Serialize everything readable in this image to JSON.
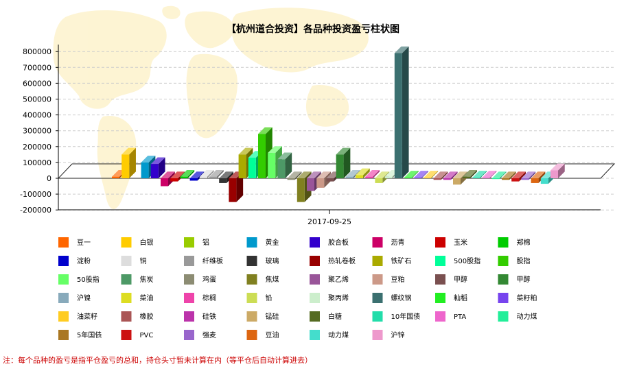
{
  "chart_data": {
    "type": "bar",
    "title": "【杭州道合投资】各品种投资盈亏柱状图",
    "xlabel": "",
    "ylabel": "",
    "categories": [
      "2017-09-25"
    ],
    "ylim": [
      -200000,
      800000
    ],
    "yticks": [
      800000,
      700000,
      600000,
      500000,
      400000,
      300000,
      200000,
      100000,
      0,
      -100000,
      -200000
    ],
    "grid": true,
    "legend_position": "bottom",
    "series": [
      {
        "name": "豆一",
        "color": "#ff6600",
        "values": [
          10000
        ]
      },
      {
        "name": "白银",
        "color": "#ffcc00",
        "values": [
          150000
        ]
      },
      {
        "name": "铝",
        "color": "#99cc00",
        "values": [
          0
        ]
      },
      {
        "name": "黄金",
        "color": "#0099cc",
        "values": [
          100000
        ]
      },
      {
        "name": "胶合板",
        "color": "#3300cc",
        "values": [
          90000
        ]
      },
      {
        "name": "沥青",
        "color": "#cc0066",
        "values": [
          -50000
        ]
      },
      {
        "name": "玉米",
        "color": "#cc0000",
        "values": [
          -20000
        ]
      },
      {
        "name": "郑棉",
        "color": "#00cc00",
        "values": [
          10000
        ]
      },
      {
        "name": "淀粉",
        "color": "#0000cc",
        "values": [
          -15000
        ]
      },
      {
        "name": "铜",
        "color": "#dddddd",
        "values": [
          10000
        ]
      },
      {
        "name": "纤维板",
        "color": "#999999",
        "values": [
          10000
        ]
      },
      {
        "name": "玻璃",
        "color": "#333333",
        "values": [
          -30000
        ]
      },
      {
        "name": "热轧卷板",
        "color": "#990000",
        "values": [
          -150000
        ]
      },
      {
        "name": "铁矿石",
        "color": "#aaaa00",
        "values": [
          150000
        ]
      },
      {
        "name": "500股指",
        "color": "#00ff99",
        "values": [
          130000
        ]
      },
      {
        "name": "股指",
        "color": "#33cc00",
        "values": [
          280000
        ]
      },
      {
        "name": "50股指",
        "color": "#66ff66",
        "values": [
          160000
        ]
      },
      {
        "name": "焦炭",
        "color": "#4d9966",
        "values": [
          120000
        ]
      },
      {
        "name": "鸡蛋",
        "color": "#8c8c73",
        "values": [
          -10000
        ]
      },
      {
        "name": "焦煤",
        "color": "#808020",
        "values": [
          -150000
        ]
      },
      {
        "name": "聚乙烯",
        "color": "#995599",
        "values": [
          -80000
        ]
      },
      {
        "name": "豆粕",
        "color": "#cc9988",
        "values": [
          -60000
        ]
      },
      {
        "name": "甲醇",
        "color": "#7a5050",
        "values": [
          -20000
        ]
      },
      {
        "name": "甲醇",
        "color": "#338833",
        "values": [
          150000
        ]
      },
      {
        "name": "沪镍",
        "color": "#88aabb",
        "values": [
          10000
        ]
      },
      {
        "name": "菜油",
        "color": "#dddd22",
        "values": [
          20000
        ]
      },
      {
        "name": "棕榈",
        "color": "#ee44aa",
        "values": [
          10000
        ]
      },
      {
        "name": "铅",
        "color": "#ccdd55",
        "values": [
          -30000
        ]
      },
      {
        "name": "聚丙烯",
        "color": "#cceecc",
        "values": [
          10000
        ]
      },
      {
        "name": "螺纹钢",
        "color": "#3b7070",
        "values": [
          790000
        ]
      },
      {
        "name": "籼稻",
        "color": "#22ee22",
        "values": [
          5000
        ]
      },
      {
        "name": "菜籽粕",
        "color": "#7744ee",
        "values": [
          5000
        ]
      },
      {
        "name": "油菜籽",
        "color": "#ffcc22",
        "values": [
          5000
        ]
      },
      {
        "name": "橡胶",
        "color": "#aa5555",
        "values": [
          -10000
        ]
      },
      {
        "name": "硅铁",
        "color": "#bb33aa",
        "values": [
          -10000
        ]
      },
      {
        "name": "锰硅",
        "color": "#ccaa66",
        "values": [
          -40000
        ]
      },
      {
        "name": "白糖",
        "color": "#556b22",
        "values": [
          10000
        ]
      },
      {
        "name": "10年国债",
        "color": "#22ddaa",
        "values": [
          5000
        ]
      },
      {
        "name": "PTA",
        "color": "#ee66cc",
        "values": [
          5000
        ]
      },
      {
        "name": "动力煤",
        "color": "#22ee99",
        "values": [
          -5000
        ]
      },
      {
        "name": "5年国债",
        "color": "#aa7722",
        "values": [
          -10000
        ]
      },
      {
        "name": "PVC",
        "color": "#cc1111",
        "values": [
          -20000
        ]
      },
      {
        "name": "强麦",
        "color": "#9966cc",
        "values": [
          -10000
        ]
      },
      {
        "name": "豆油",
        "color": "#dd6611",
        "values": [
          -30000
        ]
      },
      {
        "name": "动力煤",
        "color": "#44ddcc",
        "values": [
          -35000
        ]
      },
      {
        "name": "沪锌",
        "color": "#ee99cc",
        "values": [
          50000
        ]
      }
    ]
  },
  "note": "注：每个品种的盈亏是指平仓盈亏的总和，持仓头寸暂未计算在内（等平仓后自动计算进去）"
}
